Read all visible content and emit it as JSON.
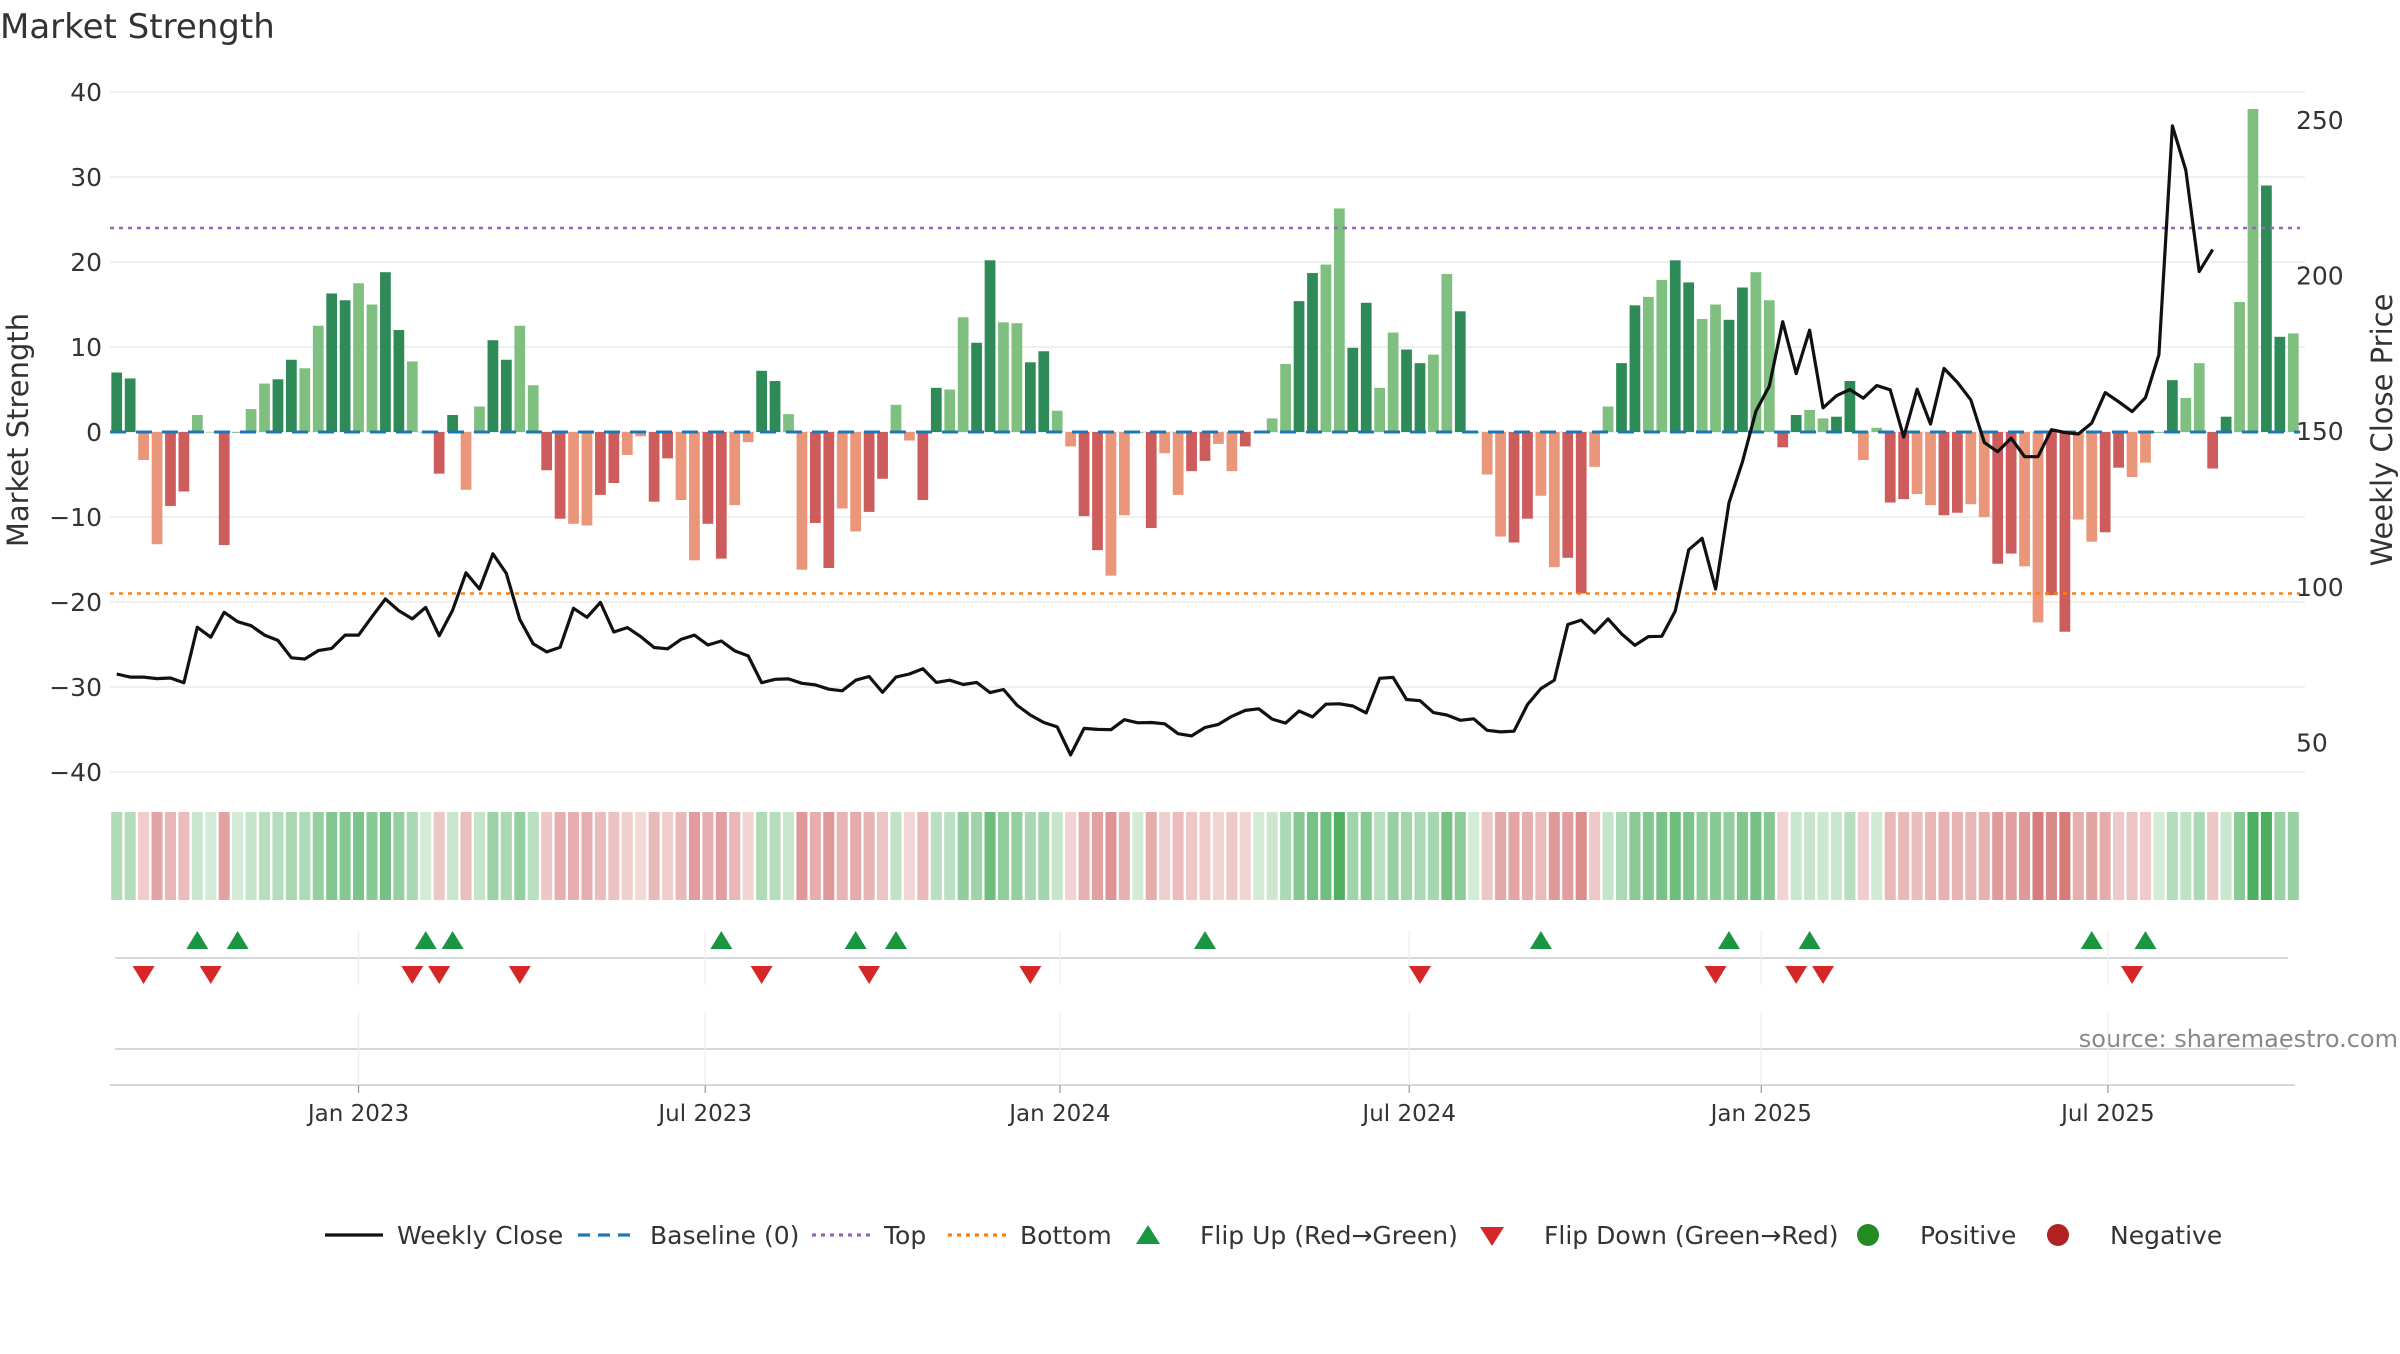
{
  "chart_data": {
    "type": "bar",
    "title": "Market Strength",
    "ylabel_left": "Market Strength",
    "ylabel_right": "Weekly Close Price",
    "source": "source: sharemaestro.com",
    "y_left_ticks": [
      40,
      30,
      20,
      10,
      0,
      -10,
      -20,
      -30,
      -40
    ],
    "y_left_tick_labels": [
      "40",
      "30",
      "20",
      "10",
      "0",
      "−10",
      "−20",
      "−30",
      "−40"
    ],
    "y_left_range": [
      -40,
      40
    ],
    "y_right_ticks": [
      250,
      200,
      150,
      100,
      50
    ],
    "y_right_tick_labels": [
      "250",
      "200",
      "150",
      "100",
      "50"
    ],
    "y_right_range": [
      40.5,
      259
    ],
    "x_ticks": [
      {
        "label": "Jan 2023",
        "week": 18.5
      },
      {
        "label": "Jul 2023",
        "week": 44.3
      },
      {
        "label": "Jan 2024",
        "week": 70.7
      },
      {
        "label": "Jul 2024",
        "week": 96.7
      },
      {
        "label": "Jan 2025",
        "week": 122.9
      },
      {
        "label": "Jul 2025",
        "week": 148.7
      }
    ],
    "top_level": 24,
    "bottom_level": -19,
    "strength": [
      7,
      6.3,
      -3.3,
      -13.2,
      -8.7,
      -7,
      2,
      0,
      -13.3,
      0,
      2.7,
      5.7,
      6.2,
      8.5,
      7.5,
      12.5,
      16.3,
      15.5,
      17.5,
      15,
      18.8,
      12,
      8.3,
      0,
      -4.9,
      2,
      -6.8,
      3,
      10.8,
      8.5,
      12.5,
      5.5,
      -4.5,
      -10.2,
      -10.8,
      -11,
      -7.4,
      -6,
      -2.7,
      -0.5,
      -8.2,
      -3.1,
      -8,
      -15.1,
      -10.8,
      -14.9,
      -8.6,
      -1.2,
      7.2,
      6,
      2.1,
      -16.2,
      -10.7,
      -16,
      -9,
      -11.7,
      -9.4,
      -5.5,
      3.2,
      -1,
      -8,
      5.2,
      5,
      13.5,
      10.5,
      20.2,
      12.9,
      12.8,
      8.2,
      9.5,
      2.5,
      -1.7,
      -9.9,
      -13.9,
      -16.9,
      -9.8,
      0,
      -11.3,
      -2.5,
      -7.4,
      -4.6,
      -3.4,
      -1.4,
      -4.6,
      -1.7,
      0,
      1.6,
      8,
      15.4,
      18.7,
      19.7,
      26.3,
      9.9,
      15.2,
      5.2,
      11.7,
      9.7,
      8.1,
      9.1,
      18.6,
      14.2,
      0,
      -5,
      -12.3,
      -13,
      -10.2,
      -7.5,
      -15.9,
      -14.8,
      -19,
      -4.1,
      3,
      8.1,
      14.9,
      15.9,
      17.9,
      20.2,
      17.6,
      13.3,
      15,
      13.2,
      17,
      18.8,
      15.5,
      -1.8,
      2,
      2.6,
      1.6,
      1.8,
      6,
      -3.3,
      0.5,
      -8.3,
      -7.9,
      -7.3,
      -8.6,
      -9.8,
      -9.5,
      -8.5,
      -10,
      -15.5,
      -14.3,
      -15.8,
      -22.4,
      -19.2,
      -23.5,
      -10.3,
      -12.9,
      -11.8,
      -4.2,
      -5.3,
      -3.6,
      0,
      6.1,
      4,
      8.1,
      -4.3,
      1.8,
      15.3,
      38,
      29,
      11.2,
      11.6
    ],
    "weekly_close": [
      72,
      71,
      71,
      70.5,
      70.7,
      69.2,
      87,
      83.8,
      91.8,
      88.8,
      87.5,
      84.5,
      82.8,
      77.2,
      76.8,
      79.5,
      80.2,
      84.5,
      84.5,
      90.4,
      96.1,
      92.3,
      89.7,
      93.4,
      84.3,
      92.5,
      104.5,
      99.3,
      110.6,
      104.3,
      89.5,
      81.7,
      79.1,
      80.6,
      93.1,
      90.2,
      95,
      85.5,
      86.9,
      84,
      80.5,
      80.1,
      83.1,
      84.5,
      81.3,
      82.6,
      79.4,
      77.8,
      69.2,
      70.3,
      70.4,
      69,
      68.5,
      67.1,
      66.6,
      70,
      71.2,
      66.1,
      71,
      72,
      73.7,
      69.3,
      70,
      68.6,
      69.3,
      66,
      67,
      62,
      58.8,
      56.4,
      55,
      46,
      54.5,
      54.2,
      54.1,
      57.3,
      56.3,
      56.4,
      56,
      52.8,
      52.1,
      54.8,
      55.8,
      58.4,
      60.3,
      60.8,
      57.5,
      56.2,
      60.1,
      58.2,
      62.3,
      62.4,
      61.7,
      59.5,
      70.6,
      70.9,
      63.8,
      63.4,
      59.6,
      58.8,
      57.1,
      57.6,
      53.9,
      53.4,
      53.6,
      62.2,
      67.3,
      70,
      87.9,
      89.3,
      85.2,
      89.7,
      84.9,
      81.2,
      84,
      84.1,
      92.2,
      111.9,
      115.6,
      99.3,
      127,
      140.1,
      156.4,
      164.5,
      185.2,
      168.5,
      182.5,
      157.5,
      161.4,
      163.4,
      160.6,
      164.7,
      163.3,
      148.1,
      163.5,
      152.3,
      170.2,
      165.7,
      160.1,
      146.4,
      143.4,
      147.8,
      141.8,
      141.8,
      150.5,
      149.6,
      149.1,
      152.6,
      162.4,
      159.5,
      156.3,
      160.8,
      174.6,
      248.1,
      233.9,
      201.3,
      208.4
    ],
    "flip_up_weeks": [
      6,
      9,
      23,
      25,
      45,
      55,
      58,
      81,
      106,
      120,
      126,
      147,
      151
    ],
    "flip_down_weeks": [
      2,
      7,
      22,
      24,
      30,
      48,
      56,
      68,
      97,
      119,
      125,
      127,
      150
    ],
    "legend": [
      "Weekly Close",
      "Baseline (0)",
      "Top",
      "Bottom",
      "Flip Up (Red→Green)",
      "Flip Down (Green→Red)",
      "Positive",
      "Negative"
    ],
    "legend_placement": "bottom",
    "grid": true,
    "colors": {
      "bar_pos_strong": "#2e8b57",
      "bar_pos_light": "#7fbf7f",
      "bar_neg_strong": "#cd5c5c",
      "bar_neg_light": "#e9967a",
      "weekly_close": "#111111",
      "baseline": "#1f77b4",
      "top": "#9467bd",
      "bottom": "#ff7f0e",
      "flip_up": "#1a9641",
      "flip_down": "#d62728",
      "positive": "#228b22",
      "negative": "#b22222"
    }
  }
}
